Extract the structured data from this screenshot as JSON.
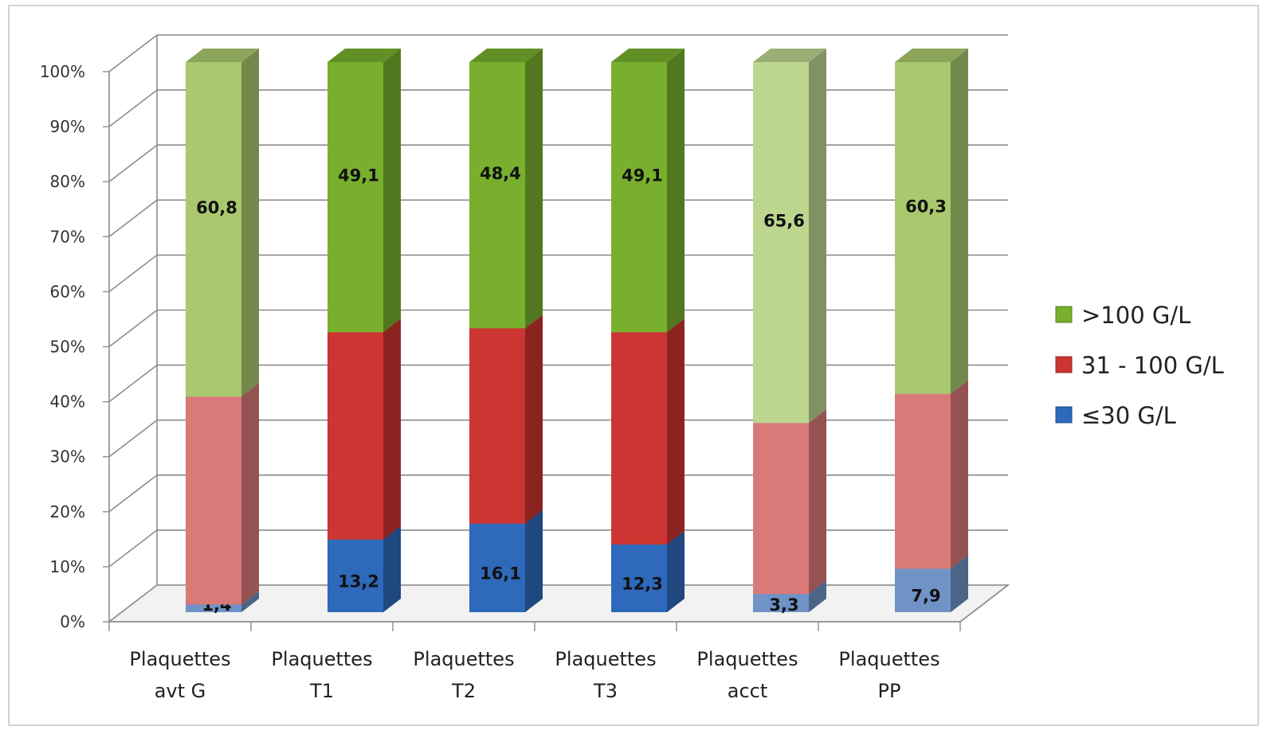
{
  "chart_data": {
    "type": "bar",
    "stacked": true,
    "percent_stacked": true,
    "three_d": true,
    "categories": [
      [
        "Plaquettes",
        "avt G"
      ],
      [
        "Plaquettes",
        "T1"
      ],
      [
        "Plaquettes",
        "T2"
      ],
      [
        "Plaquettes",
        "T3"
      ],
      [
        "Plaquettes",
        "acct"
      ],
      [
        "Plaquettes",
        "PP"
      ]
    ],
    "series": [
      {
        "name": "≤30 G/L",
        "values": [
          1.4,
          13.2,
          16.1,
          12.3,
          3.3,
          7.9
        ],
        "labels": [
          "1,4",
          "13,2",
          "16,1",
          "12,3",
          "3,3",
          "7,9"
        ],
        "colors": [
          "#6f93c6",
          "#2e69bc",
          "#2e69bc",
          "#2e69bc",
          "#6f93c6",
          "#6f93c6"
        ]
      },
      {
        "name": "31 - 100 G/L",
        "values": [
          37.8,
          37.7,
          35.5,
          38.6,
          31.1,
          31.8
        ],
        "labels": [
          "",
          "",
          "",
          "",
          "",
          ""
        ],
        "colors": [
          "#d97a78",
          "#cc3531",
          "#cc3531",
          "#cc3531",
          "#d97a78",
          "#d97a78"
        ]
      },
      {
        "name": ">100 G/L",
        "values": [
          60.8,
          49.1,
          48.4,
          49.1,
          65.6,
          60.3
        ],
        "labels": [
          "60,8",
          "49,1",
          "48,4",
          "49,1",
          "65,6",
          "60,3"
        ],
        "colors": [
          "#a9c96e",
          "#78b02d",
          "#78b02d",
          "#78b02d",
          "#bcd690",
          "#a9c96e"
        ]
      }
    ],
    "ylim": [
      0,
      100
    ],
    "yticks": [
      "0%",
      "10%",
      "20%",
      "30%",
      "40%",
      "50%",
      "60%",
      "70%",
      "80%",
      "90%",
      "100%"
    ],
    "grid": true,
    "legend": {
      "placement": "right",
      "entries": [
        {
          "label": ">100 G/L",
          "color": "#78b02d"
        },
        {
          "label": "31 - 100 G/L",
          "color": "#cc3531"
        },
        {
          "label": "≤30 G/L",
          "color": "#2e69bc"
        }
      ]
    },
    "title": "",
    "xlabel": "",
    "ylabel": ""
  }
}
